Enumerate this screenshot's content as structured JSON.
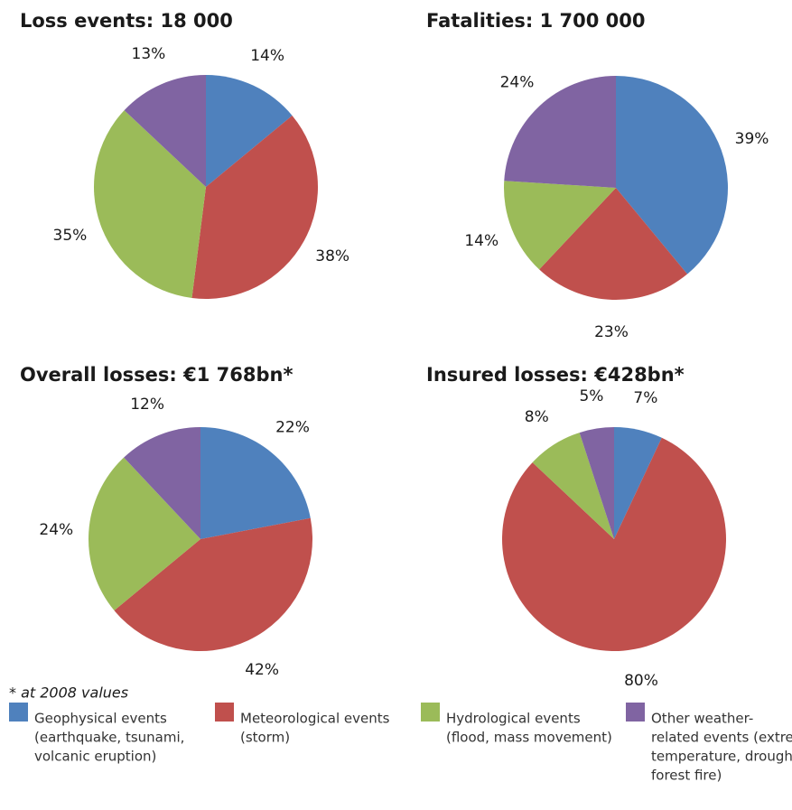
{
  "chart_data": [
    {
      "type": "pie",
      "title": "Loss events: 18 000",
      "values": [
        14,
        38,
        35,
        13
      ],
      "value_labels": [
        "14%",
        "38%",
        "35%",
        "13%"
      ],
      "colors": [
        "#4f81bd",
        "#c0504d",
        "#9bbb59",
        "#8064a2"
      ]
    },
    {
      "type": "pie",
      "title": "Fatalities: 1 700 000",
      "values": [
        39,
        23,
        14,
        24
      ],
      "value_labels": [
        "39%",
        "23%",
        "14%",
        "24%"
      ],
      "colors": [
        "#4f81bd",
        "#c0504d",
        "#9bbb59",
        "#8064a2"
      ]
    },
    {
      "type": "pie",
      "title": "Overall losses: €1 768bn*",
      "values": [
        22,
        42,
        24,
        12
      ],
      "value_labels": [
        "22%",
        "42%",
        "24%",
        "12%"
      ],
      "colors": [
        "#4f81bd",
        "#c0504d",
        "#9bbb59",
        "#8064a2"
      ]
    },
    {
      "type": "pie",
      "title": "Insured losses: €428bn*",
      "values": [
        7,
        80,
        8,
        5
      ],
      "value_labels": [
        "7%",
        "80%",
        "8%",
        "5%"
      ],
      "colors": [
        "#4f81bd",
        "#c0504d",
        "#9bbb59",
        "#8064a2"
      ]
    }
  ],
  "note": "* at 2008 values",
  "legend": [
    {
      "color": "#4f81bd",
      "lines": [
        "Geophysical events",
        "(earthquake, tsunami,",
        "volcanic eruption)"
      ]
    },
    {
      "color": "#c0504d",
      "lines": [
        "Meteorological events",
        "(storm)"
      ]
    },
    {
      "color": "#9bbb59",
      "lines": [
        "Hydrological events",
        "(flood, mass movement)"
      ]
    },
    {
      "color": "#8064a2",
      "lines": [
        "Other weather-",
        "related events (extreme",
        "temperature, drought,",
        "forest fire)"
      ]
    }
  ]
}
